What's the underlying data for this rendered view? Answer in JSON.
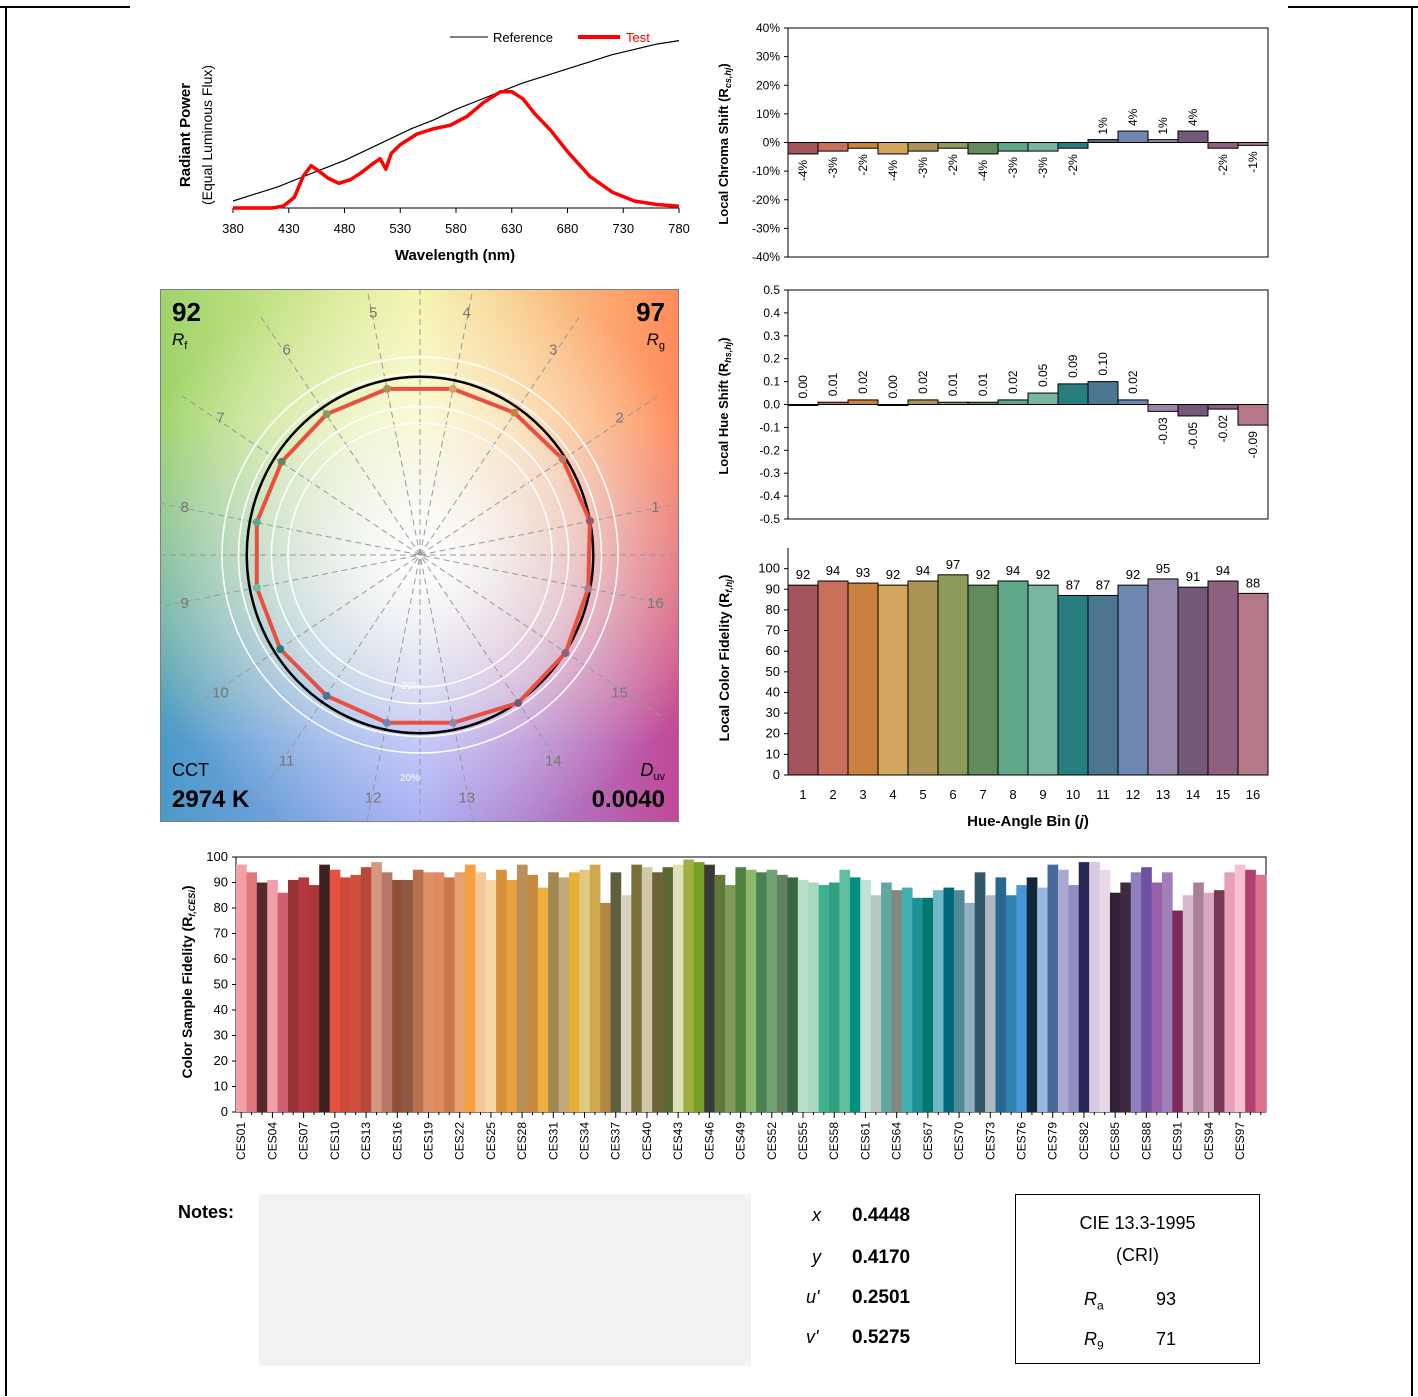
{
  "chart_data": [
    {
      "type": "line",
      "id": "spd",
      "xlabel": "Wavelength (nm)",
      "ylabel": "Radiant Power",
      "ylabel2": "(Equal Luminous Flux)",
      "x_ticks": [
        380,
        430,
        480,
        530,
        580,
        630,
        680,
        730,
        780
      ],
      "xlim": [
        380,
        780
      ],
      "ylim": [
        0,
        1.05
      ],
      "legend_position": "top-right",
      "series": [
        {
          "name": "Reference",
          "color": "#000000",
          "x": [
            380,
            400,
            420,
            440,
            460,
            480,
            500,
            520,
            540,
            560,
            580,
            600,
            620,
            640,
            660,
            680,
            700,
            720,
            740,
            760,
            780
          ],
          "y": [
            0.04,
            0.08,
            0.12,
            0.17,
            0.22,
            0.27,
            0.33,
            0.39,
            0.45,
            0.5,
            0.56,
            0.61,
            0.66,
            0.71,
            0.75,
            0.79,
            0.83,
            0.87,
            0.9,
            0.93,
            0.95
          ]
        },
        {
          "name": "Test",
          "color": "#ff0000",
          "x": [
            380,
            400,
            415,
            425,
            435,
            443,
            450,
            457,
            465,
            475,
            485,
            495,
            505,
            512,
            517,
            522,
            530,
            545,
            560,
            575,
            590,
            605,
            620,
            630,
            640,
            650,
            665,
            680,
            700,
            720,
            740,
            760,
            780
          ],
          "y": [
            0.0,
            0.0,
            0.0,
            0.01,
            0.06,
            0.18,
            0.24,
            0.21,
            0.17,
            0.14,
            0.16,
            0.2,
            0.25,
            0.28,
            0.22,
            0.31,
            0.36,
            0.42,
            0.45,
            0.47,
            0.52,
            0.6,
            0.66,
            0.66,
            0.62,
            0.54,
            0.44,
            0.32,
            0.18,
            0.09,
            0.04,
            0.02,
            0.01
          ]
        }
      ]
    },
    {
      "type": "bar",
      "id": "chroma",
      "ylabel": "Local Chroma Shift (R",
      "ylabel_sub": "cs,hj",
      "ylabel_end": ")",
      "ylim": [
        -40,
        40
      ],
      "y_ticks": [
        "-40%",
        "-30%",
        "-20%",
        "-10%",
        "0%",
        "10%",
        "20%",
        "30%",
        "40%"
      ],
      "y_tick_values": [
        -40,
        -30,
        -20,
        -10,
        0,
        10,
        20,
        30,
        40
      ],
      "values": [
        -4,
        -3,
        -2,
        -4,
        -3,
        -2,
        -4,
        -3,
        -3,
        -2,
        1,
        4,
        1,
        4,
        -2,
        -1
      ],
      "labels": [
        "-4%",
        "-3%",
        "-2%",
        "-4%",
        "-3%",
        "-2%",
        "-4%",
        "-3%",
        "-3%",
        "-2%",
        "1%",
        "4%",
        "1%",
        "4%",
        "-2%",
        "-1%"
      ]
    },
    {
      "type": "bar",
      "id": "hue",
      "ylabel": "Local Hue Shift (R",
      "ylabel_sub": "hs,hj",
      "ylabel_end": ")",
      "ylim": [
        -0.5,
        0.5
      ],
      "y_ticks": [
        "-0.5",
        "-0.4",
        "-0.3",
        "-0.2",
        "-0.1",
        "0.0",
        "0.1",
        "0.2",
        "0.3",
        "0.4",
        "0.5"
      ],
      "y_tick_values": [
        -0.5,
        -0.4,
        -0.3,
        -0.2,
        -0.1,
        0,
        0.1,
        0.2,
        0.3,
        0.4,
        0.5
      ],
      "values": [
        0.0,
        0.01,
        0.02,
        0.0,
        0.02,
        0.01,
        0.01,
        0.02,
        0.05,
        0.09,
        0.1,
        0.02,
        -0.03,
        -0.05,
        -0.02,
        -0.09
      ],
      "labels": [
        "0.00",
        "0.01",
        "0.02",
        "0.00",
        "0.02",
        "0.01",
        "0.01",
        "0.02",
        "0.05",
        "0.09",
        "0.10",
        "0.02",
        "-0.03",
        "-0.05",
        "-0.02",
        "-0.09"
      ]
    },
    {
      "type": "bar",
      "id": "fidelity",
      "ylabel": "Local Color Fidelity (R",
      "ylabel_sub": "f,hj",
      "ylabel_end": ")",
      "xlabel": "Hue-Angle Bin (",
      "xlabel_var": "j",
      "xlabel_end": ")",
      "ylim": [
        0,
        100
      ],
      "y_ticks": [
        "0",
        "10",
        "20",
        "30",
        "40",
        "50",
        "60",
        "70",
        "80",
        "90",
        "100"
      ],
      "categories": [
        "1",
        "2",
        "3",
        "4",
        "5",
        "6",
        "7",
        "8",
        "9",
        "10",
        "11",
        "12",
        "13",
        "14",
        "15",
        "16"
      ],
      "values": [
        92,
        94,
        93,
        92,
        94,
        97,
        92,
        94,
        92,
        87,
        87,
        92,
        95,
        91,
        94,
        88
      ],
      "labels": [
        "92",
        "94",
        "93",
        "92",
        "94",
        "97",
        "92",
        "94",
        "92",
        "87",
        "87",
        "92",
        "95",
        "91",
        "94",
        "88"
      ]
    },
    {
      "type": "bar",
      "id": "ces",
      "ylabel": "Color Sample Fidelity (R",
      "ylabel_sub": "f,CESi",
      "ylabel_end": ")",
      "ylim": [
        0,
        100
      ],
      "y_ticks": [
        "0",
        "10",
        "20",
        "30",
        "40",
        "50",
        "60",
        "70",
        "80",
        "90",
        "100"
      ],
      "tick_labels": [
        "CES01",
        "CES04",
        "CES07",
        "CES10",
        "CES13",
        "CES16",
        "CES19",
        "CES22",
        "CES25",
        "CES28",
        "CES31",
        "CES34",
        "CES37",
        "CES40",
        "CES43",
        "CES46",
        "CES49",
        "CES52",
        "CES55",
        "CES58",
        "CES61",
        "CES64",
        "CES67",
        "CES70",
        "CES73",
        "CES76",
        "CES79",
        "CES82",
        "CES85",
        "CES88",
        "CES91",
        "CES94",
        "CES97"
      ],
      "values": [
        97,
        94,
        90,
        91,
        86,
        91,
        92,
        89,
        97,
        95,
        92,
        93,
        96,
        98,
        94,
        91,
        91,
        95,
        94,
        94,
        92,
        94,
        97,
        94,
        91,
        95,
        91,
        97,
        93,
        88,
        94,
        92,
        94,
        95,
        97,
        82,
        94,
        85,
        97,
        96,
        94,
        96,
        97,
        99,
        98,
        97,
        93,
        89,
        96,
        95,
        94,
        95,
        93,
        92,
        91,
        90,
        89,
        90,
        95,
        92,
        91,
        85,
        90,
        87,
        88,
        84,
        84,
        87,
        88,
        87,
        82,
        94,
        85,
        92,
        85,
        89,
        92,
        88,
        97,
        95,
        89,
        98,
        98,
        95,
        86,
        90,
        94,
        96,
        90,
        94,
        79,
        85,
        90,
        86,
        87,
        94,
        97,
        95,
        93
      ]
    }
  ],
  "vector": {
    "rf_value": "92",
    "rf_label": "R",
    "rf_sub": "f",
    "rg_value": "97",
    "rg_label": "R",
    "rg_sub": "g",
    "cct_label": "CCT",
    "cct_value": "2974 K",
    "duv_label": "D",
    "duv_sub": "uv",
    "duv_value": "0.0040",
    "bins": [
      "1",
      "2",
      "3",
      "4",
      "5",
      "6",
      "7",
      "8",
      "9",
      "10",
      "11",
      "12",
      "13",
      "14",
      "15",
      "16"
    ],
    "ring_labels": [
      "-20%",
      "20%"
    ],
    "test_radius_scale": [
      1.01,
      1.0,
      0.99,
      0.98,
      0.98,
      0.98,
      0.97,
      0.97,
      0.97,
      0.98,
      0.98,
      0.99,
      0.99,
      1.03,
      1.02,
      1.0
    ]
  },
  "stats": {
    "notes_label": "Notes:",
    "x_label": "x",
    "x_value": "0.4448",
    "y_label": "y",
    "y_value": "0.4170",
    "u_label": "u'",
    "u_value": "0.2501",
    "v_label": "v'",
    "v_value": "0.5275"
  },
  "cri": {
    "title1": "CIE 13.3-1995",
    "title2": "(CRI)",
    "ra_label": "R",
    "ra_sub": "a",
    "ra_value": "93",
    "r9_label": "R",
    "r9_sub": "9",
    "r9_value": "71"
  }
}
